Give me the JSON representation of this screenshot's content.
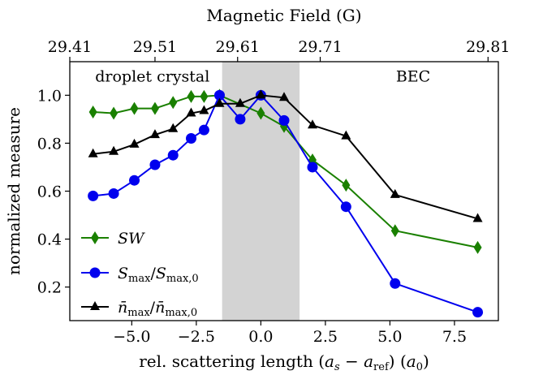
{
  "chart_data": {
    "type": "line",
    "xlabel": "rel. scattering length (a_s − a_ref) (a_0)",
    "ylabel": "normalized measure",
    "top_xlabel": "Magnetic Field (G)",
    "xlim": [
      -7.4,
      9.2
    ],
    "ylim": [
      0.06,
      1.14
    ],
    "xticks": [
      -5.0,
      -2.5,
      0.0,
      2.5,
      5.0,
      7.5
    ],
    "xtick_labels": [
      "−5.0",
      "−2.5",
      "0.0",
      "2.5",
      "5.0",
      "7.5"
    ],
    "yticks": [
      0.2,
      0.4,
      0.6,
      0.8,
      1.0
    ],
    "ytick_labels": [
      "0.2",
      "0.4",
      "0.6",
      "0.8",
      "1.0"
    ],
    "top_xticks": [
      -7.4,
      -4.1,
      -0.9,
      2.3,
      8.8
    ],
    "top_xtick_labels": [
      "29.41",
      "29.51",
      "29.61",
      "29.71",
      "29.81"
    ],
    "shaded_region": [
      -1.5,
      1.5
    ],
    "shaded_color": "#d3d3d3",
    "region_labels": [
      {
        "text": "droplet crystal",
        "x": -4.2,
        "y": 1.08
      },
      {
        "text": "BEC",
        "x": 5.9,
        "y": 1.08
      }
    ],
    "legend_placement": "lower-left",
    "grid": false,
    "series": [
      {
        "name": "SW",
        "color": "#1a8000",
        "marker": "diamond",
        "x": [
          -6.5,
          -5.7,
          -4.9,
          -4.1,
          -3.4,
          -2.7,
          -2.2,
          -1.6,
          0.0,
          0.9,
          2.0,
          3.3,
          5.2,
          8.4
        ],
        "y": [
          0.93,
          0.925,
          0.945,
          0.945,
          0.97,
          0.995,
          0.995,
          1.0,
          0.925,
          0.87,
          0.73,
          0.625,
          0.435,
          0.365
        ]
      },
      {
        "name": "S_max/S_max,0",
        "color": "#0000ee",
        "marker": "circle",
        "x": [
          -6.5,
          -5.7,
          -4.9,
          -4.1,
          -3.4,
          -2.7,
          -2.2,
          -1.6,
          -0.8,
          0.0,
          0.9,
          2.0,
          3.3,
          5.2,
          8.4
        ],
        "y": [
          0.58,
          0.59,
          0.645,
          0.71,
          0.75,
          0.82,
          0.855,
          1.0,
          0.9,
          1.0,
          0.895,
          0.7,
          0.535,
          0.215,
          0.095
        ]
      },
      {
        "name": "n̄_max/n̄_max,0",
        "color": "#000000",
        "marker": "triangle",
        "x": [
          -6.5,
          -5.7,
          -4.9,
          -4.1,
          -3.4,
          -2.7,
          -2.2,
          -1.6,
          -0.8,
          0.0,
          0.9,
          2.0,
          3.3,
          5.2,
          8.4
        ],
        "y": [
          0.755,
          0.765,
          0.795,
          0.835,
          0.86,
          0.925,
          0.935,
          0.965,
          0.965,
          1.0,
          0.99,
          0.875,
          0.83,
          0.585,
          0.485
        ]
      }
    ]
  }
}
